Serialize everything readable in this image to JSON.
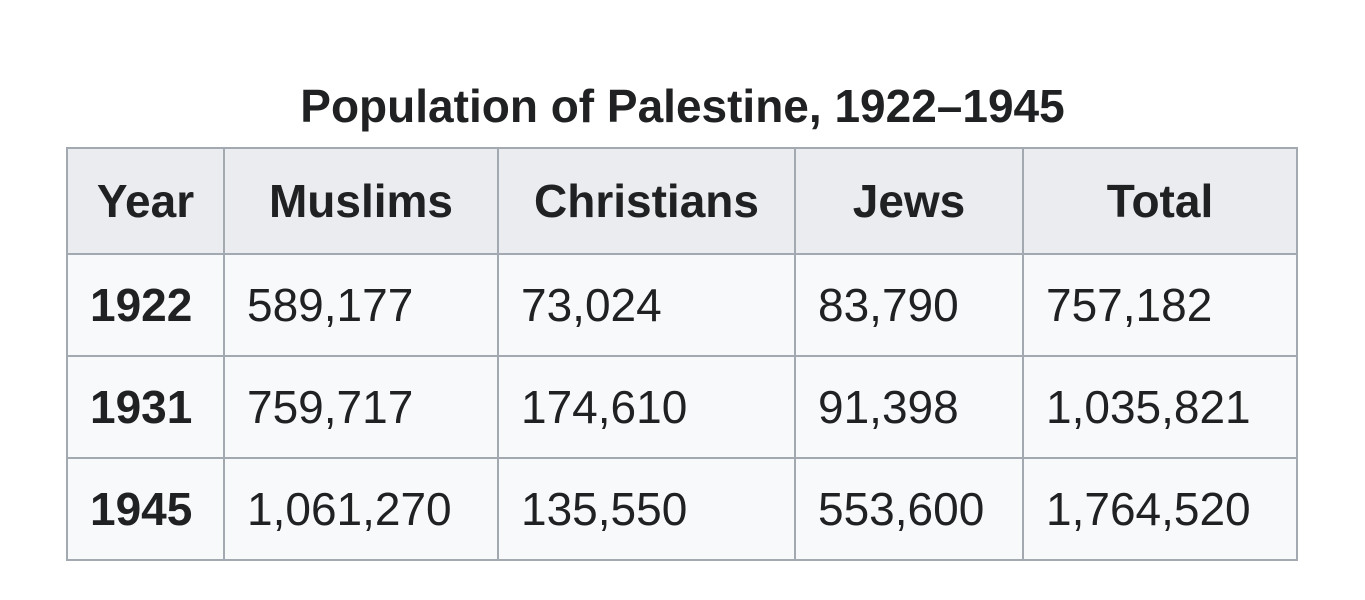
{
  "caption": "Population of Palestine, 1922–1945",
  "table": {
    "headers": [
      "Year",
      "Muslims",
      "Christians",
      "Jews",
      "Total"
    ],
    "rows": [
      {
        "year": "1922",
        "cells": [
          "589,177",
          "73,024",
          "83,790",
          "757,182"
        ]
      },
      {
        "year": "1931",
        "cells": [
          "759,717",
          "174,610",
          "91,398",
          "1,035,821"
        ]
      },
      {
        "year": "1945",
        "cells": [
          "1,061,270",
          "135,550",
          "553,600",
          "1,764,520"
        ]
      }
    ]
  },
  "colors": {
    "header_bg": "#eaecf0",
    "cell_bg": "#f8f9fa",
    "border": "#a2a9b1",
    "text": "#202122"
  }
}
